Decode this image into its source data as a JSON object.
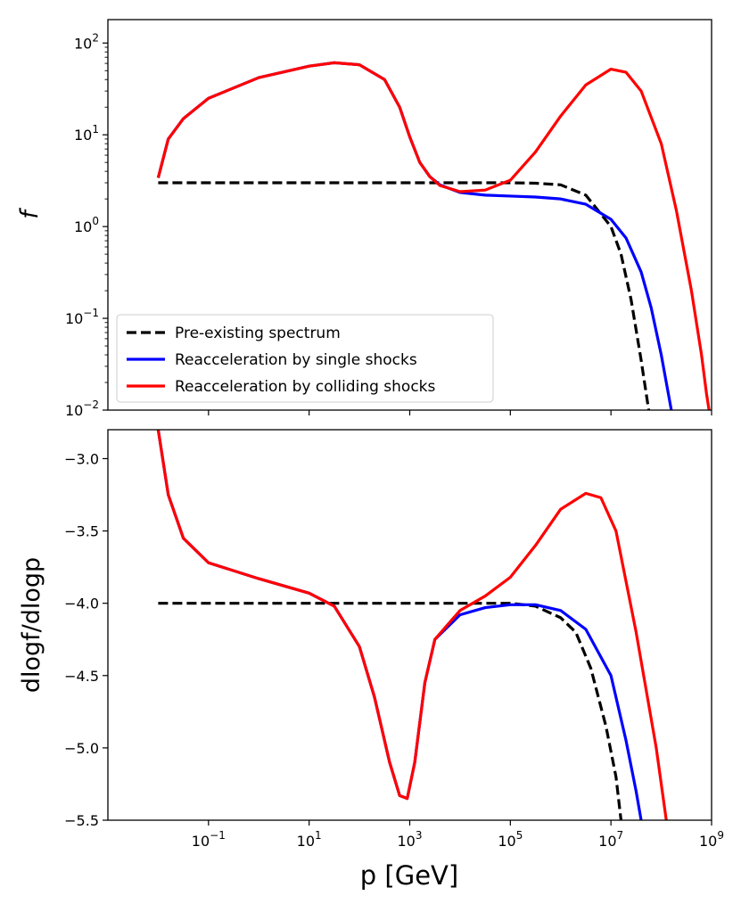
{
  "chart_data": [
    {
      "type": "line",
      "panel": "top",
      "xscale": "log",
      "yscale": "log",
      "xlim": [
        0.001,
        1000000000
      ],
      "ylim": [
        0.01,
        180
      ],
      "xlabel": "",
      "ylabel": "f",
      "yticks": [
        {
          "value": 0.01,
          "base": "10",
          "exp": "−2"
        },
        {
          "value": 0.1,
          "base": "10",
          "exp": "−1"
        },
        {
          "value": 1,
          "base": "10",
          "exp": "0"
        },
        {
          "value": 10,
          "base": "10",
          "exp": "1"
        },
        {
          "value": 100,
          "base": "10",
          "exp": "2"
        }
      ],
      "legend_position": "lower-left",
      "series": [
        {
          "name": "Pre-existing spectrum",
          "color": "#000000",
          "style": "dashed",
          "points": [
            [
              -2,
              3.0
            ],
            [
              0,
              3.0
            ],
            [
              2,
              3.0
            ],
            [
              4,
              3.0
            ],
            [
              5,
              3.0
            ],
            [
              5.5,
              2.97
            ],
            [
              6,
              2.85
            ],
            [
              6.5,
              2.2
            ],
            [
              7,
              1.0
            ],
            [
              7.2,
              0.5
            ],
            [
              7.4,
              0.16
            ],
            [
              7.6,
              0.035
            ],
            [
              7.75,
              0.01
            ]
          ]
        },
        {
          "name": "Reacceleration by single shocks",
          "color": "#0000ff",
          "style": "solid",
          "points": [
            [
              -2,
              3.4
            ],
            [
              -1.8,
              9
            ],
            [
              -1.5,
              15
            ],
            [
              -1,
              25
            ],
            [
              0,
              42
            ],
            [
              1,
              56
            ],
            [
              1.5,
              61
            ],
            [
              2,
              58
            ],
            [
              2.5,
              40
            ],
            [
              2.8,
              20
            ],
            [
              3,
              9.5
            ],
            [
              3.2,
              5
            ],
            [
              3.4,
              3.5
            ],
            [
              3.6,
              2.85
            ],
            [
              4,
              2.35
            ],
            [
              4.5,
              2.2
            ],
            [
              5,
              2.15
            ],
            [
              5.5,
              2.1
            ],
            [
              6,
              2.0
            ],
            [
              6.5,
              1.75
            ],
            [
              7,
              1.2
            ],
            [
              7.3,
              0.75
            ],
            [
              7.6,
              0.32
            ],
            [
              7.8,
              0.13
            ],
            [
              8,
              0.04
            ],
            [
              8.1,
              0.02
            ],
            [
              8.2,
              0.01
            ]
          ]
        },
        {
          "name": "Reacceleration by colliding shocks",
          "color": "#ff0000",
          "style": "solid",
          "points": [
            [
              -2,
              3.4
            ],
            [
              -1.8,
              9
            ],
            [
              -1.5,
              15
            ],
            [
              -1,
              25
            ],
            [
              0,
              42
            ],
            [
              1,
              56
            ],
            [
              1.5,
              61
            ],
            [
              2,
              58
            ],
            [
              2.5,
              40
            ],
            [
              2.8,
              20
            ],
            [
              3,
              9.5
            ],
            [
              3.2,
              5
            ],
            [
              3.4,
              3.5
            ],
            [
              3.6,
              2.8
            ],
            [
              4,
              2.4
            ],
            [
              4.5,
              2.5
            ],
            [
              5,
              3.2
            ],
            [
              5.5,
              6.5
            ],
            [
              6,
              16
            ],
            [
              6.5,
              35
            ],
            [
              7,
              52
            ],
            [
              7.3,
              48
            ],
            [
              7.6,
              30
            ],
            [
              8,
              8
            ],
            [
              8.3,
              1.5
            ],
            [
              8.6,
              0.2
            ],
            [
              8.8,
              0.04
            ],
            [
              8.9,
              0.015
            ],
            [
              8.95,
              0.01
            ]
          ]
        }
      ]
    },
    {
      "type": "line",
      "panel": "bottom",
      "xscale": "log",
      "yscale": "linear",
      "xlim": [
        0.001,
        1000000000
      ],
      "ylim": [
        -5.5,
        -2.8
      ],
      "xlabel": "p [GeV]",
      "ylabel": "dlogf/dlogp",
      "yticks": [
        "−3.0",
        "−3.5",
        "−4.0",
        "−4.5",
        "−5.0",
        "−5.5"
      ],
      "xticks": [
        {
          "value": 0.1,
          "base": "10",
          "exp": "−1"
        },
        {
          "value": 10,
          "base": "10",
          "exp": "1"
        },
        {
          "value": 1000,
          "base": "10",
          "exp": "3"
        },
        {
          "value": 100000,
          "base": "10",
          "exp": "5"
        },
        {
          "value": 10000000,
          "base": "10",
          "exp": "7"
        },
        {
          "value": 1000000000,
          "base": "10",
          "exp": "9"
        }
      ],
      "series": [
        {
          "name": "Pre-existing spectrum",
          "color": "#000000",
          "style": "dashed",
          "points": [
            [
              -2,
              -4.0
            ],
            [
              0,
              -4.0
            ],
            [
              2,
              -4.0
            ],
            [
              4,
              -4.0
            ],
            [
              5,
              -4.0
            ],
            [
              5.5,
              -4.02
            ],
            [
              6,
              -4.1
            ],
            [
              6.3,
              -4.2
            ],
            [
              6.6,
              -4.45
            ],
            [
              6.9,
              -4.85
            ],
            [
              7.1,
              -5.2
            ],
            [
              7.2,
              -5.5
            ]
          ]
        },
        {
          "name": "Reacceleration by single shocks",
          "color": "#0000ff",
          "style": "solid",
          "points": [
            [
              -2,
              -2.8
            ],
            [
              -1.8,
              -3.25
            ],
            [
              -1.5,
              -3.55
            ],
            [
              -1,
              -3.72
            ],
            [
              0,
              -3.83
            ],
            [
              1,
              -3.93
            ],
            [
              1.5,
              -4.02
            ],
            [
              2,
              -4.3
            ],
            [
              2.3,
              -4.65
            ],
            [
              2.6,
              -5.1
            ],
            [
              2.8,
              -5.33
            ],
            [
              2.95,
              -5.35
            ],
            [
              3.1,
              -5.1
            ],
            [
              3.3,
              -4.55
            ],
            [
              3.5,
              -4.25
            ],
            [
              4,
              -4.08
            ],
            [
              4.5,
              -4.03
            ],
            [
              5,
              -4.01
            ],
            [
              5.5,
              -4.01
            ],
            [
              6,
              -4.05
            ],
            [
              6.5,
              -4.18
            ],
            [
              7,
              -4.5
            ],
            [
              7.3,
              -4.95
            ],
            [
              7.5,
              -5.3
            ],
            [
              7.6,
              -5.5
            ]
          ]
        },
        {
          "name": "Reacceleration by colliding shocks",
          "color": "#ff0000",
          "style": "solid",
          "points": [
            [
              -2,
              -2.8
            ],
            [
              -1.8,
              -3.25
            ],
            [
              -1.5,
              -3.55
            ],
            [
              -1,
              -3.72
            ],
            [
              0,
              -3.83
            ],
            [
              1,
              -3.93
            ],
            [
              1.5,
              -4.02
            ],
            [
              2,
              -4.3
            ],
            [
              2.3,
              -4.65
            ],
            [
              2.6,
              -5.1
            ],
            [
              2.8,
              -5.33
            ],
            [
              2.95,
              -5.35
            ],
            [
              3.1,
              -5.1
            ],
            [
              3.3,
              -4.55
            ],
            [
              3.5,
              -4.25
            ],
            [
              4,
              -4.05
            ],
            [
              4.5,
              -3.95
            ],
            [
              5,
              -3.82
            ],
            [
              5.5,
              -3.6
            ],
            [
              6,
              -3.35
            ],
            [
              6.5,
              -3.24
            ],
            [
              6.8,
              -3.27
            ],
            [
              7.1,
              -3.5
            ],
            [
              7.5,
              -4.2
            ],
            [
              7.9,
              -5.0
            ],
            [
              8.1,
              -5.5
            ]
          ]
        }
      ]
    }
  ]
}
